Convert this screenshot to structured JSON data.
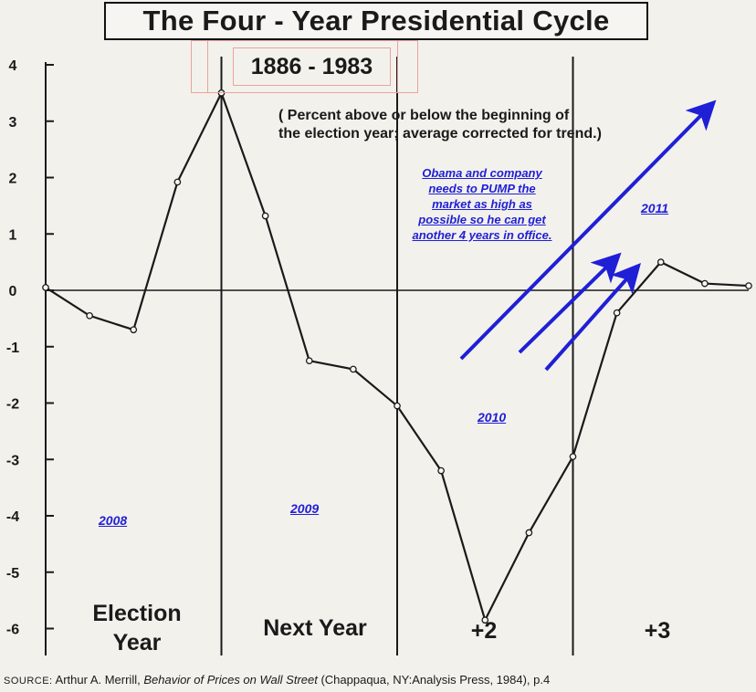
{
  "header": {
    "title": "The Four - Year Presidential Cycle",
    "date_range": "1886 - 1983",
    "note_line1": "( Percent above or below the beginning of",
    "note_line2": "the election year; average corrected for trend.)"
  },
  "annotations": {
    "obama_note": [
      "Obama and company",
      "needs to PUMP the",
      "market as high as",
      "possible so he can get",
      "another 4 years in office."
    ],
    "years": [
      "2008",
      "2009",
      "2010",
      "2011"
    ]
  },
  "source": {
    "prefix": "SOURCE:",
    "author": " Arthur A. Merrill, ",
    "book": "Behavior of Prices on Wall Street",
    "rest": " (Chappaqua, NY:Analysis Press, 1984), p.4"
  },
  "chart_data": {
    "type": "line",
    "title": "The Four - Year Presidential Cycle",
    "subtitle": "1886 - 1983",
    "ylim": [
      -7,
      4
    ],
    "y_ticks": [
      4,
      3,
      2,
      1,
      0,
      -1,
      -2,
      -3,
      -4,
      -5,
      -6
    ],
    "y_tick_labels": [
      "4",
      "3",
      "2",
      "1",
      "0",
      "-1",
      "-2",
      "-3",
      "-4",
      "-5",
      "-6"
    ],
    "categories": [
      "Election Year",
      "Next Year",
      "+2",
      "+3"
    ],
    "category_labels": [
      [
        "Election",
        "Year"
      ],
      [
        "Next Year"
      ],
      [
        "+2"
      ],
      [
        "+3"
      ]
    ],
    "x": [
      0,
      0.25,
      0.5,
      0.75,
      1.0,
      1.25,
      1.5,
      1.75,
      2.0,
      2.25,
      2.5,
      2.75,
      3.0,
      3.25,
      3.5,
      3.75,
      4.0
    ],
    "y": [
      0.05,
      -0.45,
      -0.7,
      1.92,
      3.5,
      1.32,
      -1.25,
      -1.4,
      -2.05,
      -3.2,
      -5.85,
      -4.3,
      -2.95,
      -0.4,
      0.5,
      0.12,
      0.08
    ],
    "grid": false,
    "arrows_color": "#1f1fd6",
    "line_color": "#1a1a1a"
  }
}
